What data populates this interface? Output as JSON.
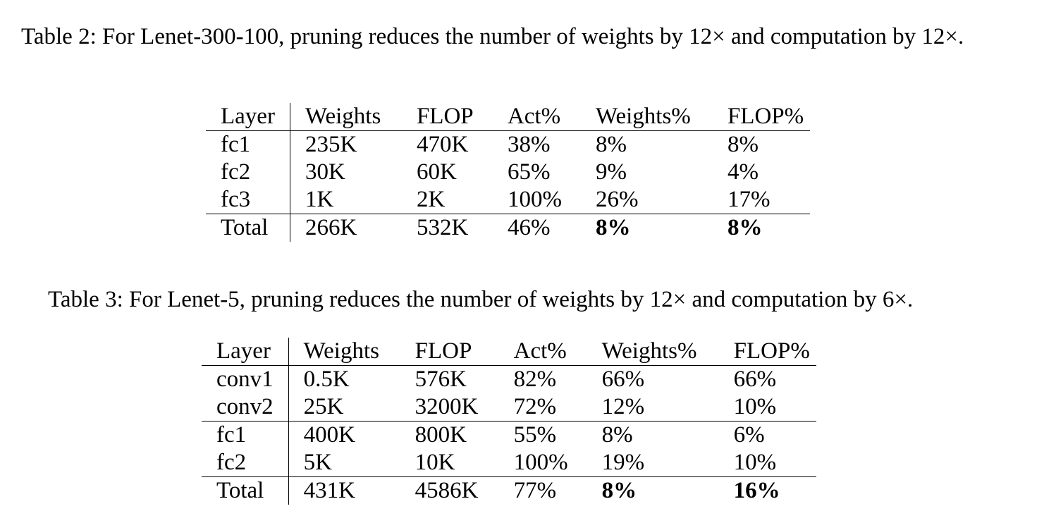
{
  "table2": {
    "caption": "Table 2: For Lenet-300-100, pruning reduces the number of weights by 12× and computation by 12×.",
    "headers": [
      "Layer",
      "Weights",
      "FLOP",
      "Act%",
      "Weights%",
      "FLOP%"
    ],
    "rows": [
      [
        "fc1",
        "235K",
        "470K",
        "38%",
        "8%",
        "8%"
      ],
      [
        "fc2",
        "30K",
        "60K",
        "65%",
        "9%",
        "4%"
      ],
      [
        "fc3",
        "1K",
        "2K",
        "100%",
        "26%",
        "17%"
      ],
      [
        "Total",
        "266K",
        "532K",
        "46%",
        "8%",
        "8%"
      ]
    ]
  },
  "table3": {
    "caption": "Table 3: For Lenet-5, pruning reduces the number of weights by 12× and computation by 6×.",
    "headers": [
      "Layer",
      "Weights",
      "FLOP",
      "Act%",
      "Weights%",
      "FLOP%"
    ],
    "rows": [
      [
        "conv1",
        "0.5K",
        "576K",
        "82%",
        "66%",
        "66%"
      ],
      [
        "conv2",
        "25K",
        "3200K",
        "72%",
        "12%",
        "10%"
      ],
      [
        "fc1",
        "400K",
        "800K",
        "55%",
        "8%",
        "6%"
      ],
      [
        "fc2",
        "5K",
        "10K",
        "100%",
        "19%",
        "10%"
      ],
      [
        "Total",
        "431K",
        "4586K",
        "77%",
        "8%",
        "16%"
      ]
    ]
  }
}
